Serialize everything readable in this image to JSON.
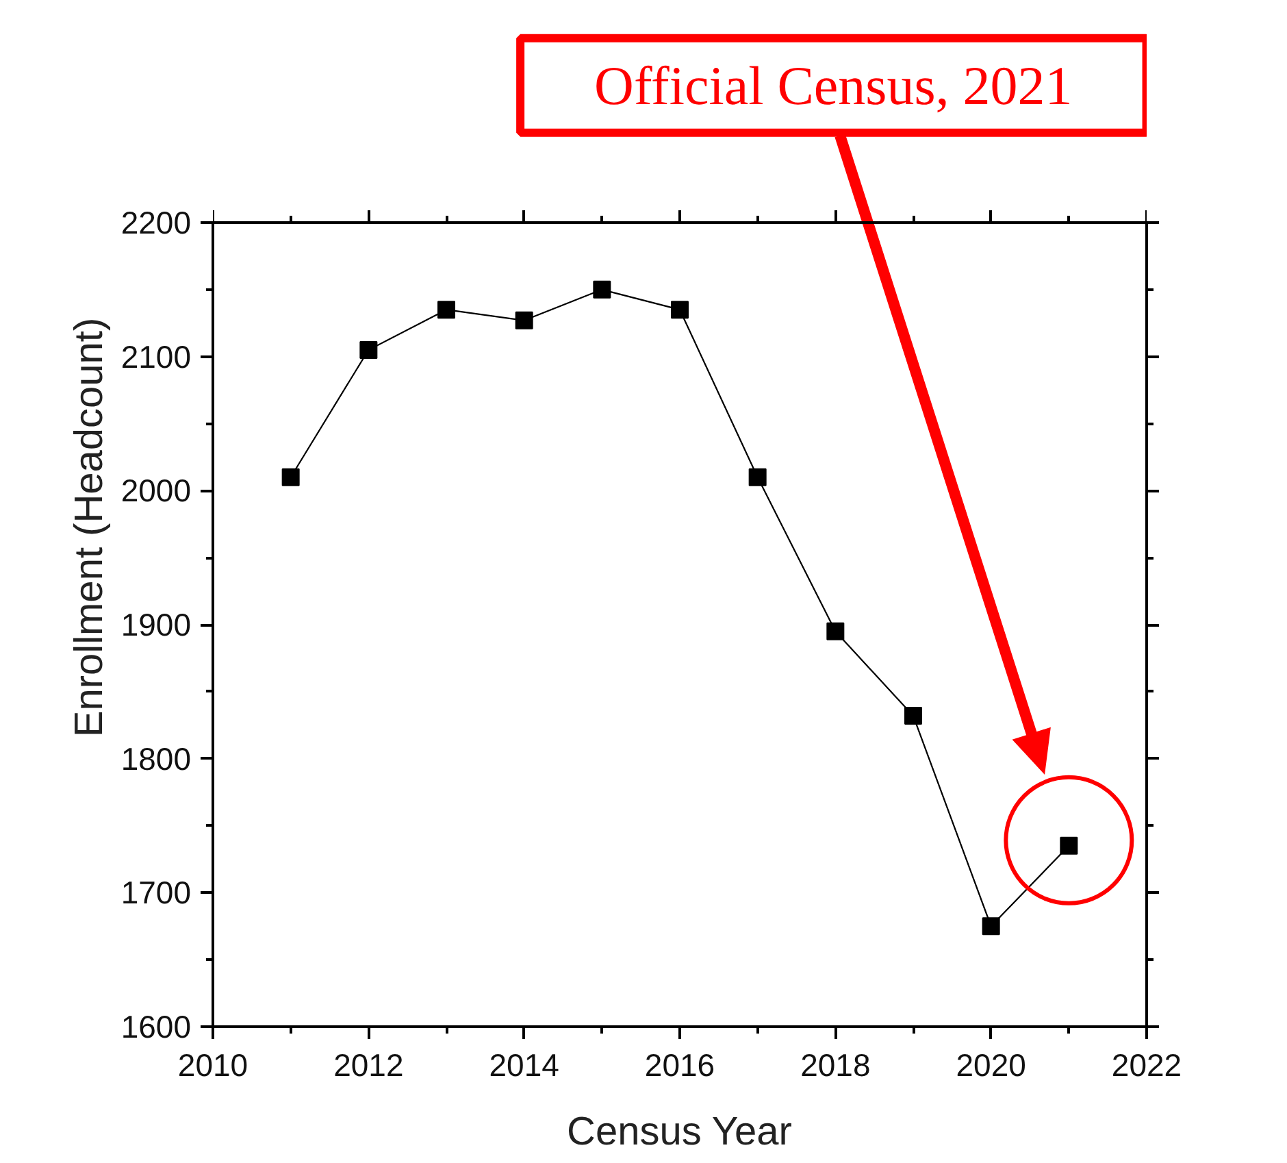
{
  "chart_data": {
    "type": "line",
    "xlabel": "Census Year",
    "ylabel": "Enrollment (Headcount)",
    "x": [
      2011,
      2012,
      2013,
      2014,
      2015,
      2016,
      2017,
      2018,
      2019,
      2020,
      2021
    ],
    "series": [
      {
        "color": "#000000",
        "values": [
          2010,
          2105,
          2135,
          2127,
          2150,
          2135,
          2010,
          1895,
          1832,
          1675,
          1735
        ]
      }
    ],
    "xlim": [
      2010,
      2022
    ],
    "ylim": [
      1600,
      2200
    ],
    "xticks": [
      2010,
      2012,
      2014,
      2016,
      2018,
      2020,
      2022
    ],
    "yticks": [
      1600,
      1700,
      1800,
      1900,
      2000,
      2100,
      2200
    ],
    "marker": "square",
    "line_style": "solid",
    "grid": false,
    "annotations": [
      "Official Census, 2021"
    ]
  }
}
